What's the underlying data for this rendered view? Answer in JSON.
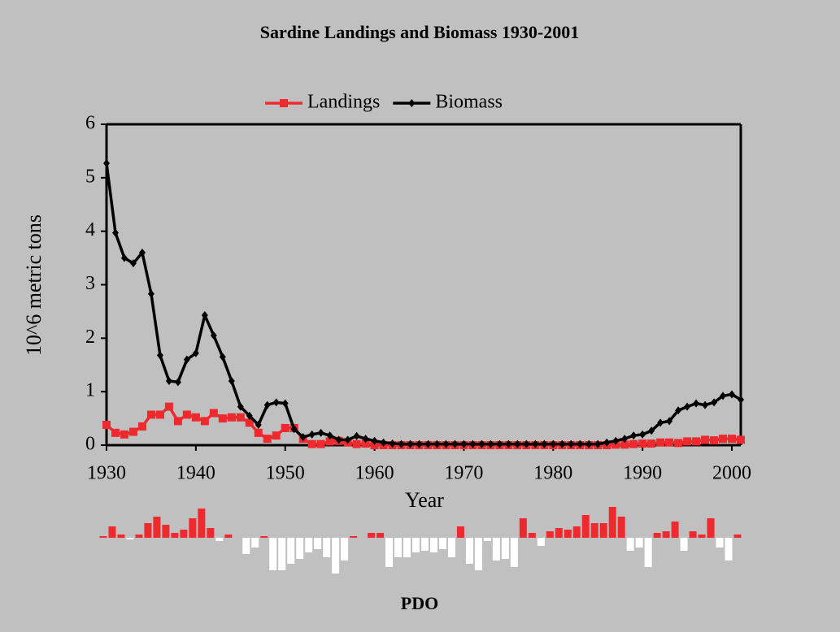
{
  "chart_data": [
    {
      "type": "line",
      "title": "Sardine Landings and Biomass 1930-2001",
      "xlabel": "Year",
      "ylabel": "10^6 metric tons",
      "x": [
        1930,
        1931,
        1932,
        1933,
        1934,
        1935,
        1936,
        1937,
        1938,
        1939,
        1940,
        1941,
        1942,
        1943,
        1944,
        1945,
        1946,
        1947,
        1948,
        1949,
        1950,
        1951,
        1952,
        1953,
        1954,
        1955,
        1956,
        1957,
        1958,
        1959,
        1960,
        1961,
        1962,
        1963,
        1964,
        1965,
        1966,
        1967,
        1968,
        1969,
        1970,
        1971,
        1972,
        1973,
        1974,
        1975,
        1976,
        1977,
        1978,
        1979,
        1980,
        1981,
        1982,
        1983,
        1984,
        1985,
        1986,
        1987,
        1988,
        1989,
        1990,
        1991,
        1992,
        1993,
        1994,
        1995,
        1996,
        1997,
        1998,
        1999,
        2000,
        2001
      ],
      "series": [
        {
          "name": "Landings",
          "color": "#ee2a2f",
          "marker": "square",
          "values": [
            0.38,
            0.23,
            0.2,
            0.25,
            0.35,
            0.57,
            0.57,
            0.72,
            0.45,
            0.57,
            0.52,
            0.45,
            0.6,
            0.5,
            0.52,
            0.52,
            0.42,
            0.23,
            0.12,
            0.18,
            0.32,
            0.32,
            0.12,
            0.02,
            0.02,
            0.07,
            0.08,
            0.05,
            0.02,
            0.03,
            0,
            0,
            0,
            0,
            0,
            0,
            0,
            0,
            0,
            0,
            0,
            0,
            0,
            0,
            0,
            0,
            0,
            0,
            0,
            0,
            0,
            0,
            0,
            0,
            0,
            0,
            0,
            0.01,
            0.01,
            0.02,
            0.03,
            0.03,
            0.05,
            0.05,
            0.04,
            0.07,
            0.07,
            0.1,
            0.09,
            0.12,
            0.12,
            0.1
          ]
        },
        {
          "name": "Biomass",
          "color": "#000000",
          "marker": "diamond",
          "values": [
            5.27,
            3.97,
            3.5,
            3.4,
            3.6,
            2.83,
            1.68,
            1.2,
            1.18,
            1.6,
            1.72,
            2.43,
            2.05,
            1.65,
            1.2,
            0.72,
            0.55,
            0.38,
            0.75,
            0.8,
            0.78,
            0.3,
            0.15,
            0.2,
            0.23,
            0.18,
            0.1,
            0.1,
            0.17,
            0.12,
            0.08,
            0.05,
            0.03,
            0.02,
            0.02,
            0.02,
            0.02,
            0.02,
            0.02,
            0.02,
            0.02,
            0.02,
            0.02,
            0.02,
            0.02,
            0.02,
            0.02,
            0.02,
            0.02,
            0.02,
            0.02,
            0.02,
            0.02,
            0.02,
            0.02,
            0.02,
            0.05,
            0.08,
            0.12,
            0.18,
            0.2,
            0.27,
            0.42,
            0.45,
            0.65,
            0.72,
            0.78,
            0.75,
            0.8,
            0.92,
            0.95,
            0.85
          ]
        }
      ],
      "xlim": [
        1930,
        2001
      ],
      "xticks": [
        1930,
        1940,
        1950,
        1960,
        1970,
        1980,
        1990,
        2000
      ],
      "ylim": [
        0,
        6
      ],
      "yticks": [
        0,
        1,
        2,
        3,
        4,
        5,
        6
      ],
      "legend": "top"
    },
    {
      "type": "bar",
      "title": "PDO",
      "positive_color": "#ee2a2f",
      "negative_color": "#ffffff",
      "values": [
        0.1,
        0.7,
        0.2,
        -0.1,
        0.2,
        0.9,
        1.3,
        0.8,
        0.3,
        0.5,
        1.2,
        1.8,
        0.6,
        -0.2,
        0.2,
        0,
        -1.0,
        -0.6,
        0.1,
        -2.0,
        -2.0,
        -1.6,
        -1.3,
        -0.9,
        -0.7,
        -1.2,
        -2.2,
        -1.4,
        0.1,
        0,
        0.3,
        0.3,
        -1.8,
        -1.2,
        -1.2,
        -0.9,
        -0.8,
        -0.9,
        -0.7,
        -1.2,
        0.7,
        -1.6,
        -2.0,
        -0.2,
        -1.4,
        -1.3,
        -1.8,
        1.2,
        0.3,
        -0.5,
        0.4,
        0.6,
        0.5,
        0.7,
        1.4,
        0.9,
        0.9,
        1.9,
        1.3,
        -0.8,
        -0.6,
        -1.8,
        0.3,
        0.4,
        1.0,
        -0.8,
        0.4,
        0.2,
        1.2,
        -0.6,
        -1.4,
        0.2
      ]
    }
  ]
}
